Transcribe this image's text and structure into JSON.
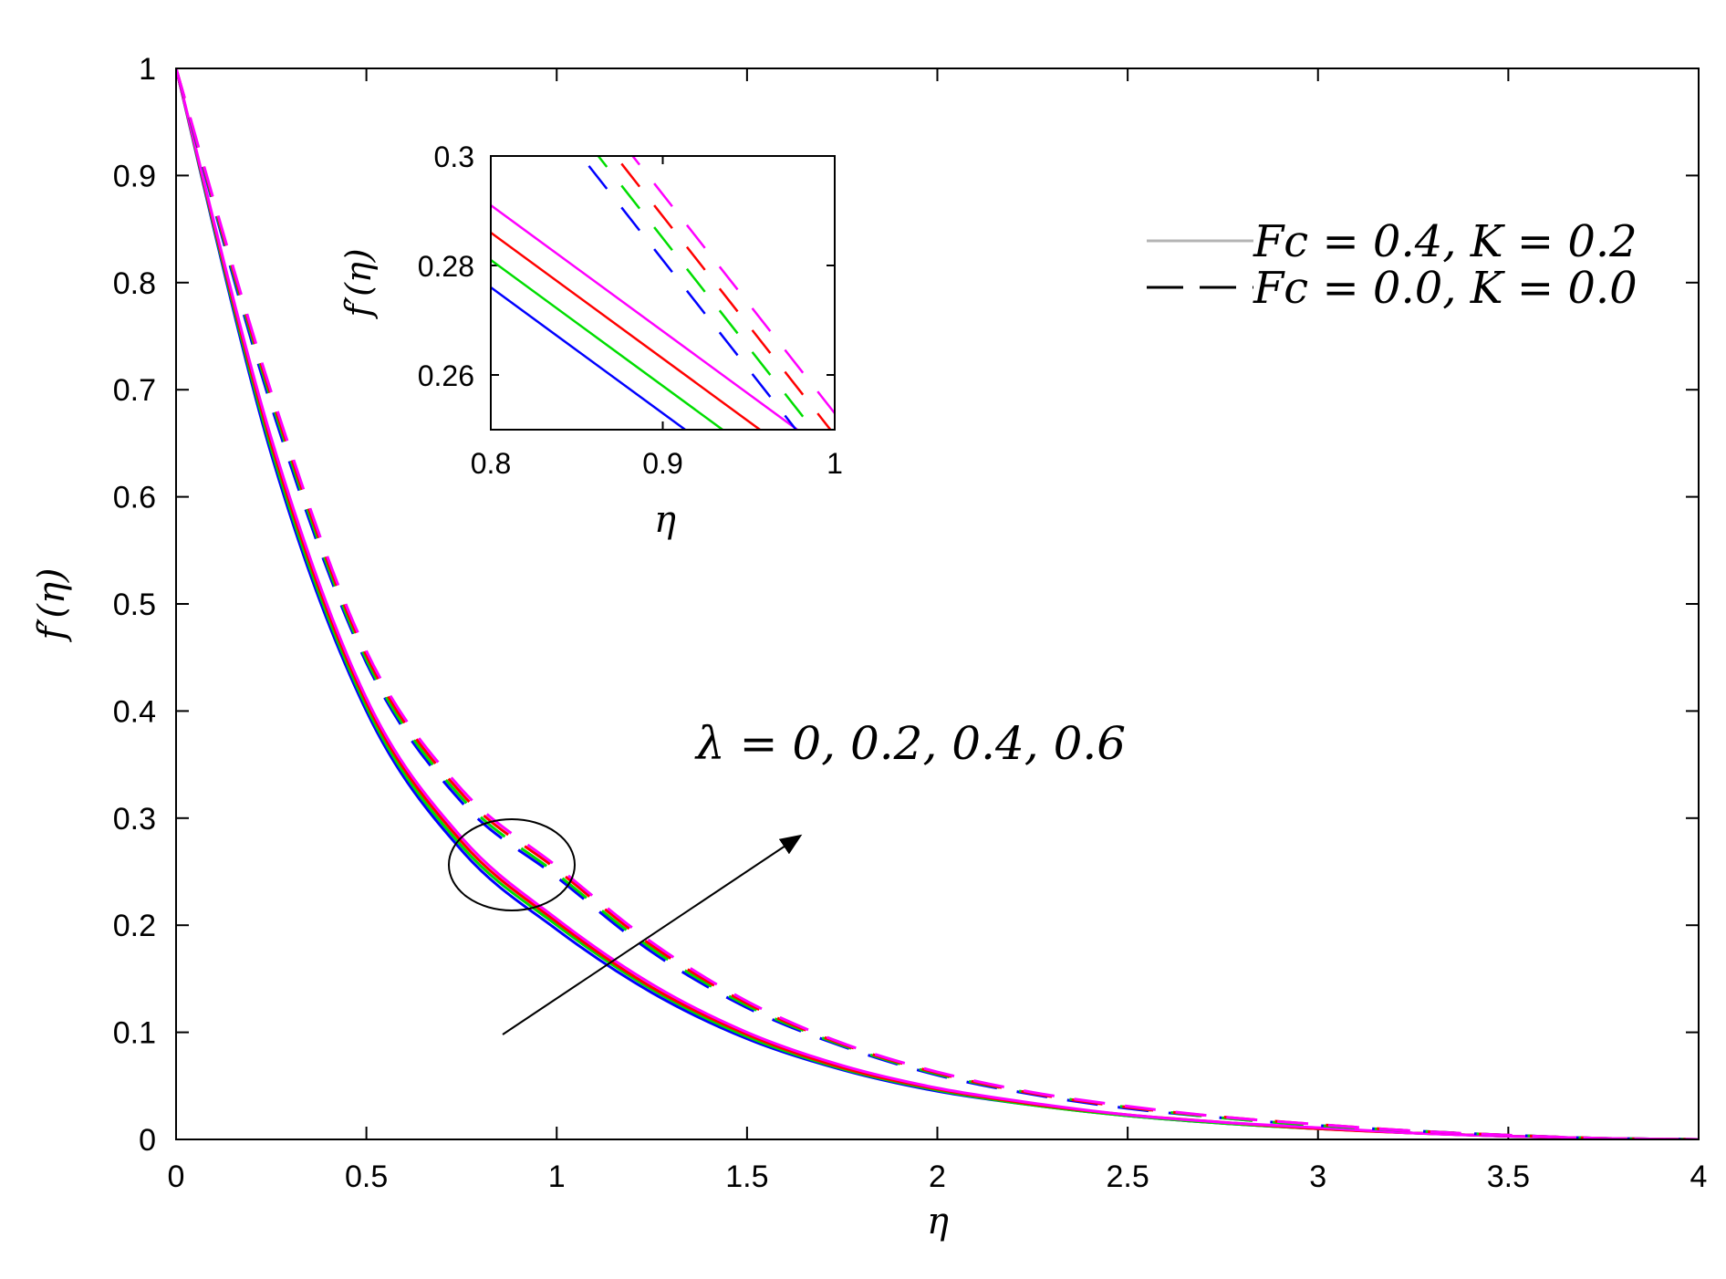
{
  "chart_data": [
    {
      "type": "line",
      "role": "main",
      "xlabel": "η",
      "ylabel": "f′(η)",
      "xlim": [
        0,
        4
      ],
      "ylim": [
        0,
        1
      ],
      "xticks": [
        0,
        0.5,
        1,
        1.5,
        2,
        2.5,
        3,
        3.5,
        4
      ],
      "yticks": [
        0,
        0.1,
        0.2,
        0.3,
        0.4,
        0.5,
        0.6,
        0.7,
        0.8,
        0.9,
        1
      ],
      "xtick_labels": [
        "0",
        "0.5",
        "1",
        "1.5",
        "2",
        "2.5",
        "3",
        "3.5",
        "4"
      ],
      "ytick_labels": [
        "0",
        "0.1",
        "0.2",
        "0.3",
        "0.4",
        "0.5",
        "0.6",
        "0.7",
        "0.8",
        "0.9",
        "1"
      ],
      "grid": false,
      "legend_position": "top-right",
      "legend": [
        {
          "label": "Fc = 0.4, K = 0.2",
          "style": "solid",
          "color": "#b4b4b4"
        },
        {
          "label": "Fc = 0.0, K = 0.0",
          "style": "dashed",
          "color": "#000000"
        }
      ],
      "annotation": "λ = 0, 0.2, 0.4, 0.6",
      "x": [
        0,
        0.25,
        0.5,
        0.75,
        1,
        1.25,
        1.5,
        1.75,
        2,
        2.25,
        2.5,
        2.75,
        3,
        3.25,
        3.5,
        3.75,
        4
      ],
      "series": [
        {
          "lambda": 0,
          "style": "solid",
          "color": "#0000ff",
          "values": [
            1.0,
            0.64,
            0.4,
            0.27,
            0.196,
            0.137,
            0.094,
            0.065,
            0.045,
            0.032,
            0.022,
            0.015,
            0.01,
            0.006,
            0.003,
            0.001,
            0.0
          ]
        },
        {
          "lambda": 0.2,
          "style": "solid",
          "color": "#00dd00",
          "values": [
            1.0,
            0.645,
            0.404,
            0.274,
            0.2,
            0.14,
            0.096,
            0.066,
            0.046,
            0.032,
            0.022,
            0.015,
            0.01,
            0.006,
            0.003,
            0.001,
            0.0
          ]
        },
        {
          "lambda": 0.4,
          "style": "solid",
          "color": "#ff0000",
          "values": [
            1.0,
            0.65,
            0.408,
            0.278,
            0.203,
            0.142,
            0.098,
            0.067,
            0.047,
            0.033,
            0.023,
            0.016,
            0.01,
            0.006,
            0.003,
            0.001,
            0.0
          ]
        },
        {
          "lambda": 0.6,
          "style": "solid",
          "color": "#ff00ff",
          "values": [
            1.0,
            0.655,
            0.412,
            0.282,
            0.206,
            0.145,
            0.1,
            0.069,
            0.048,
            0.034,
            0.023,
            0.016,
            0.011,
            0.006,
            0.003,
            0.001,
            0.0
          ]
        },
        {
          "lambda": 0,
          "style": "dashed",
          "color": "#0000ff",
          "values": [
            1.0,
            0.685,
            0.445,
            0.315,
            0.245,
            0.175,
            0.123,
            0.087,
            0.06,
            0.042,
            0.029,
            0.02,
            0.013,
            0.008,
            0.004,
            0.001,
            0.0
          ]
        },
        {
          "lambda": 0.2,
          "style": "dashed",
          "color": "#00dd00",
          "values": [
            1.0,
            0.69,
            0.448,
            0.319,
            0.248,
            0.178,
            0.125,
            0.088,
            0.061,
            0.043,
            0.03,
            0.02,
            0.013,
            0.008,
            0.004,
            0.001,
            0.0
          ]
        },
        {
          "lambda": 0.4,
          "style": "dashed",
          "color": "#ff0000",
          "values": [
            1.0,
            0.694,
            0.452,
            0.323,
            0.252,
            0.181,
            0.127,
            0.089,
            0.062,
            0.043,
            0.03,
            0.021,
            0.014,
            0.008,
            0.004,
            0.001,
            0.0
          ]
        },
        {
          "lambda": 0.6,
          "style": "dashed",
          "color": "#ff00ff",
          "values": [
            1.0,
            0.698,
            0.456,
            0.327,
            0.255,
            0.184,
            0.129,
            0.09,
            0.063,
            0.044,
            0.031,
            0.021,
            0.014,
            0.008,
            0.004,
            0.001,
            0.0
          ]
        }
      ]
    },
    {
      "type": "line",
      "role": "inset",
      "xlabel": "η",
      "ylabel": "f′(η)",
      "xlim": [
        0.8,
        1
      ],
      "ylim": [
        0.25,
        0.3
      ],
      "xticks": [
        0.8,
        0.9,
        1
      ],
      "yticks": [
        0.26,
        0.28,
        0.3
      ],
      "xtick_labels": [
        "0.8",
        "0.9",
        "1"
      ],
      "ytick_labels": [
        "0.26",
        "0.28",
        "0.3"
      ],
      "x": [
        0.8,
        1.0
      ],
      "series": [
        {
          "lambda": 0,
          "style": "solid",
          "color": "#0000ff",
          "values": [
            0.276,
            0.23
          ]
        },
        {
          "lambda": 0.2,
          "style": "solid",
          "color": "#00dd00",
          "values": [
            0.281,
            0.235
          ]
        },
        {
          "lambda": 0.4,
          "style": "solid",
          "color": "#ff0000",
          "values": [
            0.286,
            0.24
          ]
        },
        {
          "lambda": 0.6,
          "style": "solid",
          "color": "#ff00ff",
          "values": [
            0.291,
            0.245
          ]
        },
        {
          "lambda": 0,
          "style": "dashed",
          "color": "#0000ff",
          "values": [
            0.321,
            0.241
          ]
        },
        {
          "lambda": 0.2,
          "style": "dashed",
          "color": "#00dd00",
          "values": [
            0.325,
            0.245
          ]
        },
        {
          "lambda": 0.4,
          "style": "dashed",
          "color": "#ff0000",
          "values": [
            0.329,
            0.249
          ]
        },
        {
          "lambda": 0.6,
          "style": "dashed",
          "color": "#ff00ff",
          "values": [
            0.333,
            0.253
          ]
        }
      ]
    }
  ]
}
